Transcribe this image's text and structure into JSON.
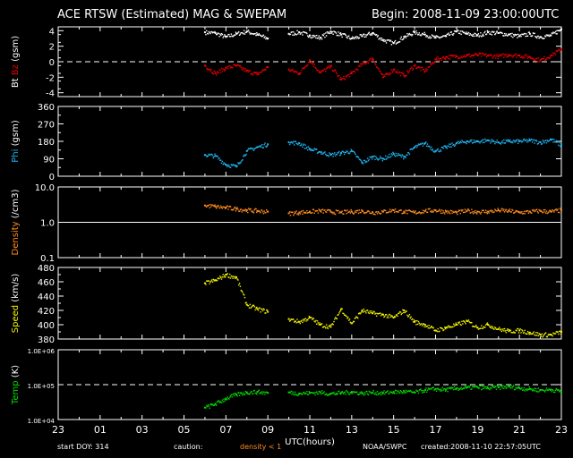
{
  "header": {
    "title": "ACE RTSW (Estimated) MAG & SWEPAM",
    "begin": "Begin: 2008-11-09 23:00:00UTC"
  },
  "footer": {
    "start_doy": "start DOY: 314",
    "caution": "caution:",
    "density_note": "density < 1",
    "org": "NOAA/SWPC",
    "created": "created:2008-11-10 22:57:05UTC"
  },
  "colors": {
    "bt": "#ffffff",
    "bz": "#e00000",
    "phi": "#1eb4f0",
    "density": "#ff8c1e",
    "speed": "#f0f000",
    "temp": "#00dc00",
    "frame": "#ffffff",
    "background": "#000000"
  },
  "chart_data": {
    "type": "scatter",
    "xlabel": "UTC(hours)",
    "x_ticks": [
      "23",
      "01",
      "03",
      "05",
      "07",
      "09",
      "11",
      "13",
      "15",
      "17",
      "19",
      "21",
      "23"
    ],
    "xlim": [
      0,
      24
    ],
    "panels": [
      {
        "id": "mag",
        "ylabel_parts": [
          {
            "text": "Bt",
            "color": "#ffffff"
          },
          {
            "text": "Bz",
            "color": "#e00000"
          },
          {
            "text": "(gsm)",
            "color": "#ffffff"
          }
        ],
        "ylim": [
          -4.5,
          4.5
        ],
        "scale": "linear",
        "ticks": [
          "-4",
          "-2",
          "0",
          "2",
          "4"
        ],
        "tick_values": [
          -4,
          -2,
          0,
          2,
          4
        ],
        "reference_line": 0,
        "series": [
          {
            "name": "Bt",
            "color": "#ffffff",
            "x": [
              7.0,
              7.5,
              8.0,
              8.5,
              9.0,
              9.5,
              10.0,
              11.0,
              11.5,
              12.0,
              12.5,
              13.0,
              13.5,
              14.0,
              14.5,
              15.0,
              15.5,
              16.0,
              16.5,
              17.0,
              17.5,
              18.0,
              18.5,
              19.0,
              19.5,
              20.0,
              20.5,
              21.0,
              21.5,
              22.0,
              22.5,
              23.0,
              23.5,
              24.0
            ],
            "y": [
              3.8,
              3.7,
              3.2,
              3.6,
              3.9,
              3.5,
              3.0,
              3.6,
              3.8,
              3.4,
              3.1,
              3.9,
              3.5,
              3.0,
              3.3,
              3.7,
              2.8,
              2.4,
              3.2,
              3.8,
              3.5,
              3.1,
              3.3,
              3.9,
              3.6,
              3.4,
              3.8,
              3.7,
              3.5,
              3.3,
              3.6,
              3.2,
              3.4,
              4.2
            ]
          },
          {
            "name": "Bz",
            "color": "#e00000",
            "x": [
              7.0,
              7.5,
              8.0,
              8.5,
              9.0,
              9.5,
              10.0,
              11.0,
              11.5,
              12.0,
              12.5,
              13.0,
              13.5,
              14.0,
              14.5,
              15.0,
              15.5,
              16.0,
              16.5,
              17.0,
              17.5,
              18.0,
              18.5,
              19.0,
              19.5,
              20.0,
              20.5,
              21.0,
              21.5,
              22.0,
              22.5,
              23.0,
              23.5,
              24.0
            ],
            "y": [
              -0.5,
              -1.5,
              -0.8,
              -0.5,
              -1.2,
              -1.6,
              -0.7,
              -1.0,
              -1.5,
              0.2,
              -1.4,
              -0.6,
              -2.3,
              -1.5,
              -0.3,
              0.4,
              -2.0,
              -1.0,
              -1.8,
              -0.5,
              -1.2,
              0.3,
              0.6,
              0.7,
              0.8,
              0.9,
              0.8,
              0.7,
              0.9,
              0.8,
              0.6,
              0.2,
              0.8,
              1.6
            ]
          }
        ]
      },
      {
        "id": "phi",
        "ylabel_parts": [
          {
            "text": "Phi",
            "color": "#1eb4f0"
          },
          {
            "text": "(gsm)",
            "color": "#ffffff"
          }
        ],
        "ylim": [
          0,
          360
        ],
        "scale": "linear",
        "ticks": [
          "0",
          "90",
          "180",
          "270",
          "360"
        ],
        "tick_values": [
          0,
          90,
          180,
          270,
          360
        ],
        "series": [
          {
            "name": "Phi",
            "color": "#1eb4f0",
            "x": [
              7.0,
              7.5,
              8.0,
              8.5,
              9.0,
              9.5,
              10.0,
              11.0,
              11.5,
              12.0,
              12.5,
              13.0,
              13.5,
              14.0,
              14.5,
              15.0,
              15.5,
              16.0,
              16.5,
              17.0,
              17.5,
              18.0,
              18.5,
              19.0,
              19.5,
              20.0,
              20.5,
              21.0,
              21.5,
              22.0,
              22.5,
              23.0,
              23.5,
              24.0
            ],
            "y": [
              110,
              105,
              60,
              50,
              130,
              150,
              165,
              175,
              170,
              140,
              125,
              110,
              120,
              130,
              70,
              100,
              90,
              115,
              100,
              150,
              170,
              130,
              150,
              170,
              180,
              180,
              185,
              175,
              180,
              180,
              185,
              175,
              190,
              160
            ]
          }
        ]
      },
      {
        "id": "density",
        "ylabel_parts": [
          {
            "text": "Density",
            "color": "#ff8c1e"
          },
          {
            "text": "(/cm3)",
            "color": "#ffffff"
          }
        ],
        "ylim": [
          0.1,
          10.0
        ],
        "scale": "log",
        "ticks": [
          "0.1",
          "1.0",
          "10.0"
        ],
        "tick_values": [
          0.1,
          1.0,
          10.0
        ],
        "reference_line": 1.0,
        "series": [
          {
            "name": "Density",
            "color": "#ff8c1e",
            "x": [
              7.0,
              7.5,
              8.0,
              8.5,
              9.0,
              9.5,
              10.0,
              11.0,
              11.5,
              12.0,
              12.5,
              13.0,
              13.5,
              14.0,
              14.5,
              15.0,
              15.5,
              16.0,
              16.5,
              17.0,
              17.5,
              18.0,
              18.5,
              19.0,
              19.5,
              20.0,
              20.5,
              21.0,
              21.5,
              22.0,
              22.5,
              23.0,
              23.5,
              24.0
            ],
            "y": [
              3.0,
              2.8,
              2.6,
              2.4,
              2.2,
              2.1,
              2.0,
              1.8,
              1.9,
              2.0,
              2.1,
              2.0,
              1.9,
              2.0,
              2.1,
              1.9,
              2.0,
              2.2,
              2.0,
              1.9,
              2.1,
              2.2,
              2.0,
              1.9,
              2.1,
              2.0,
              2.0,
              2.2,
              2.1,
              1.9,
              2.0,
              2.1,
              2.0,
              2.2
            ]
          }
        ]
      },
      {
        "id": "speed",
        "ylabel_parts": [
          {
            "text": "Speed",
            "color": "#f0f000"
          },
          {
            "text": "(km/s)",
            "color": "#ffffff"
          }
        ],
        "ylim": [
          380,
          480
        ],
        "scale": "linear",
        "ticks": [
          "380",
          "400",
          "420",
          "440",
          "460",
          "480"
        ],
        "tick_values": [
          380,
          400,
          420,
          440,
          460,
          480
        ],
        "series": [
          {
            "name": "Speed",
            "color": "#f0f000",
            "x": [
              7.0,
              7.5,
              8.0,
              8.5,
              9.0,
              9.5,
              10.0,
              11.0,
              11.5,
              12.0,
              12.5,
              13.0,
              13.5,
              14.0,
              14.5,
              15.0,
              15.5,
              16.0,
              16.5,
              17.0,
              17.5,
              18.0,
              18.5,
              19.0,
              19.5,
              20.0,
              20.5,
              21.0,
              21.5,
              22.0,
              22.5,
              23.0,
              23.5,
              24.0
            ],
            "y": [
              458,
              462,
              470,
              466,
              428,
              422,
              418,
              408,
              404,
              410,
              400,
              397,
              422,
              402,
              420,
              416,
              414,
              410,
              420,
              404,
              400,
              392,
              396,
              400,
              405,
              396,
              400,
              394,
              391,
              392,
              389,
              386,
              386,
              390
            ]
          }
        ]
      },
      {
        "id": "temp",
        "ylabel_parts": [
          {
            "text": "Temp",
            "color": "#00dc00"
          },
          {
            "text": "(K)",
            "color": "#ffffff"
          }
        ],
        "ylim": [
          10000,
          1000000
        ],
        "scale": "log",
        "ticks": [
          "1.0E+04",
          "1.0E+05",
          "1.0E+06"
        ],
        "tick_values": [
          10000,
          100000,
          1000000
        ],
        "reference_line": 100000,
        "series": [
          {
            "name": "Temp",
            "color": "#00dc00",
            "x": [
              7.0,
              7.5,
              8.0,
              8.5,
              9.0,
              9.5,
              10.0,
              11.0,
              11.5,
              12.0,
              12.5,
              13.0,
              13.5,
              14.0,
              14.5,
              15.0,
              15.5,
              16.0,
              16.5,
              17.0,
              17.5,
              18.0,
              18.5,
              19.0,
              19.5,
              20.0,
              20.5,
              21.0,
              21.5,
              22.0,
              22.5,
              23.0,
              23.5,
              24.0
            ],
            "y": [
              22000,
              28000,
              40000,
              52000,
              60000,
              62000,
              58000,
              60000,
              56000,
              58000,
              60000,
              55000,
              58000,
              62000,
              57000,
              60000,
              58000,
              62000,
              63000,
              60000,
              70000,
              75000,
              72000,
              78000,
              82000,
              85000,
              80000,
              84000,
              88000,
              80000,
              75000,
              70000,
              72000,
              65000
            ]
          }
        ]
      }
    ]
  }
}
